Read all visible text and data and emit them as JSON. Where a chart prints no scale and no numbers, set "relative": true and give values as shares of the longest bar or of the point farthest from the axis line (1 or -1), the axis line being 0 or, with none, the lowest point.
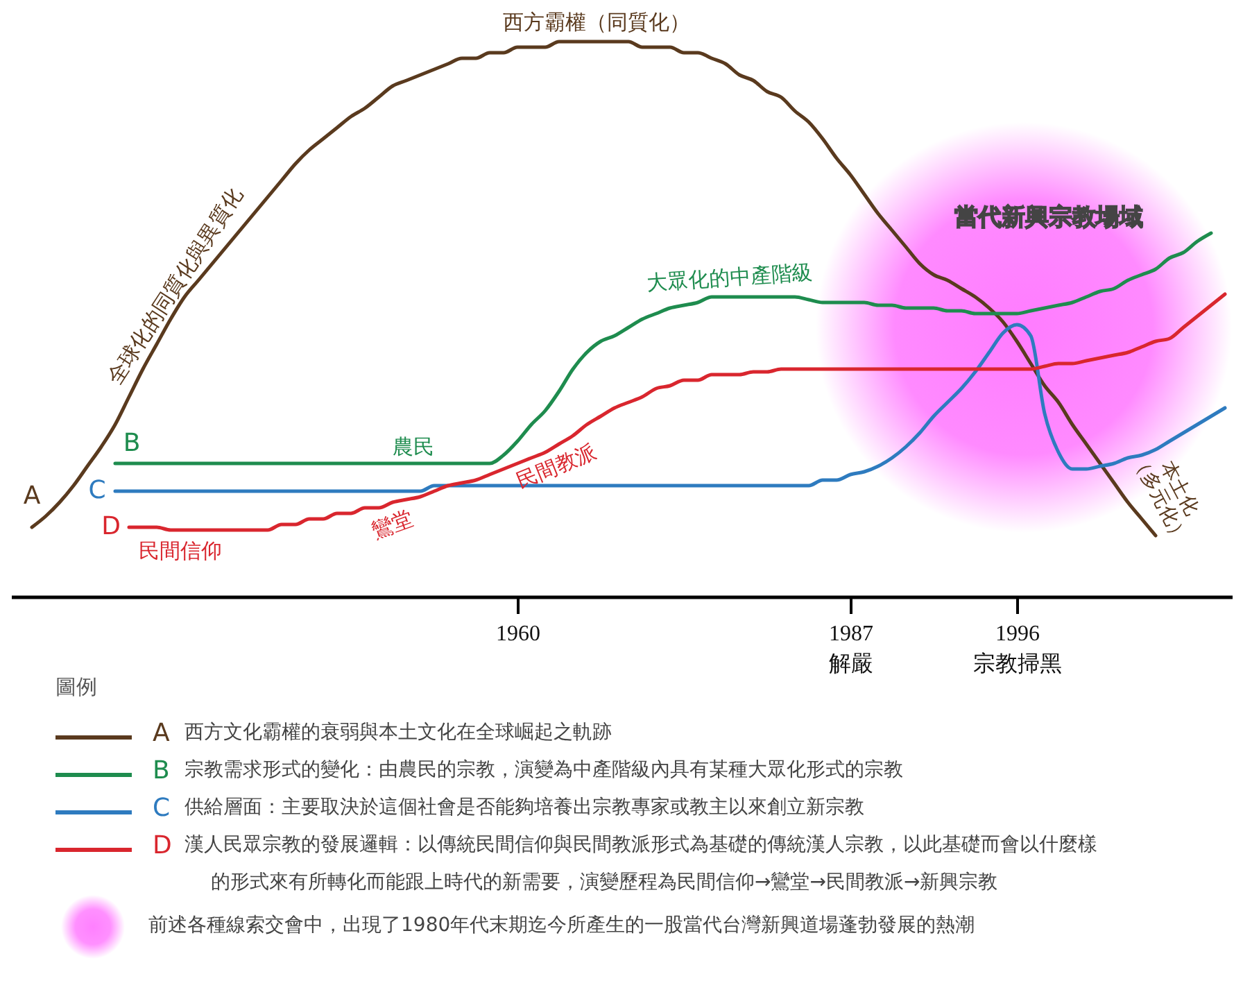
{
  "chart_data": {
    "type": "line",
    "relative": true,
    "legend": "bottom",
    "legend_title": "圖例",
    "categories": [
      null,
      null,
      null,
      null,
      null,
      null,
      null,
      null,
      null,
      null,
      null,
      null,
      null,
      null,
      null,
      null,
      null,
      null,
      null,
      null,
      null,
      null,
      null,
      null,
      null,
      null,
      null,
      null,
      null,
      null,
      null,
      null,
      null,
      null,
      null,
      null,
      "1960",
      null,
      null,
      null,
      null,
      null,
      null,
      null,
      null,
      null,
      null,
      null,
      null,
      null,
      null,
      null,
      null,
      null,
      null,
      null,
      null,
      null,
      null,
      null,
      "1987\n解嚴",
      null,
      null,
      null,
      null,
      null,
      null,
      null,
      null,
      null,
      null,
      null,
      "1996\n宗教掃黑",
      null,
      null,
      null,
      null,
      null,
      null,
      null,
      null,
      null,
      null,
      null,
      null,
      null,
      null,
      null
    ],
    "series": [
      {
        "name": "A",
        "color": "#5a3a1e",
        "values": [
          null,
          0.125,
          0.145,
          0.17,
          0.2,
          0.235,
          0.27,
          0.31,
          0.36,
          0.41,
          0.455,
          0.5,
          0.54,
          0.57,
          0.6,
          0.63,
          0.66,
          0.69,
          0.72,
          0.75,
          0.78,
          0.805,
          0.825,
          0.845,
          0.865,
          0.88,
          0.9,
          0.92,
          0.93,
          0.94,
          0.95,
          0.96,
          0.97,
          0.97,
          0.98,
          0.98,
          0.99,
          0.99,
          0.99,
          1,
          1,
          1,
          1,
          1,
          1,
          0.99,
          0.99,
          0.99,
          0.98,
          0.98,
          0.97,
          0.96,
          0.94,
          0.93,
          0.91,
          0.9,
          0.875,
          0.855,
          0.825,
          0.79,
          0.76,
          0.725,
          0.69,
          0.66,
          0.63,
          0.6,
          0.58,
          0.57,
          0.555,
          0.54,
          0.52,
          0.495,
          0.46,
          0.42,
          0.38,
          0.35,
          0.31,
          0.275,
          0.24,
          0.205,
          0.17,
          0.14,
          0.11,
          null,
          null,
          null,
          null,
          null
        ]
      },
      {
        "name": "B",
        "color": "#1e8c4e",
        "values": [
          null,
          null,
          null,
          null,
          null,
          null,
          null,
          0.24,
          0.24,
          0.24,
          0.24,
          0.24,
          0.24,
          0.24,
          0.24,
          0.24,
          0.24,
          0.24,
          0.24,
          0.24,
          0.24,
          0.24,
          0.24,
          0.24,
          0.24,
          0.24,
          0.24,
          0.24,
          0.24,
          0.24,
          0.24,
          0.24,
          0.24,
          0.24,
          0.24,
          0.255,
          0.28,
          0.31,
          0.335,
          0.37,
          0.41,
          0.44,
          0.46,
          0.47,
          0.485,
          0.5,
          0.51,
          0.52,
          0.525,
          0.53,
          0.54,
          0.54,
          0.54,
          0.54,
          0.54,
          0.54,
          0.54,
          0.535,
          0.53,
          0.53,
          0.53,
          0.53,
          0.525,
          0.525,
          0.52,
          0.52,
          0.52,
          0.515,
          0.515,
          0.51,
          0.51,
          0.51,
          0.51,
          0.515,
          0.52,
          0.525,
          0.53,
          0.54,
          0.55,
          0.555,
          0.57,
          0.58,
          0.59,
          0.61,
          0.62,
          0.64,
          0.655,
          null
        ]
      },
      {
        "name": "C",
        "color": "#2e7bbf",
        "values": [
          null,
          null,
          null,
          null,
          null,
          null,
          null,
          0.19,
          0.19,
          0.19,
          0.19,
          0.19,
          0.19,
          0.19,
          0.19,
          0.19,
          0.19,
          0.19,
          0.19,
          0.19,
          0.19,
          0.19,
          0.19,
          0.19,
          0.19,
          0.19,
          0.19,
          0.19,
          0.19,
          0.19,
          0.2,
          0.2,
          0.2,
          0.2,
          0.2,
          0.2,
          0.2,
          0.2,
          0.2,
          0.2,
          0.2,
          0.2,
          0.2,
          0.2,
          0.2,
          0.2,
          0.2,
          0.2,
          0.2,
          0.2,
          0.2,
          0.2,
          0.2,
          0.2,
          0.2,
          0.2,
          0.2,
          0.2,
          0.21,
          0.21,
          0.22,
          0.225,
          0.235,
          0.25,
          0.27,
          0.295,
          0.325,
          0.35,
          0.375,
          0.405,
          0.44,
          0.475,
          0.49,
          0.47,
          0.33,
          0.26,
          0.23,
          0.23,
          0.235,
          0.24,
          0.25,
          0.255,
          0.265,
          0.28,
          0.295,
          0.31,
          0.325,
          0.34
        ]
      },
      {
        "name": "D",
        "color": "#d9262e",
        "values": [
          null,
          null,
          null,
          null,
          null,
          null,
          null,
          null,
          0.125,
          0.125,
          0.125,
          0.12,
          0.12,
          0.12,
          0.12,
          0.12,
          0.12,
          0.12,
          0.12,
          0.13,
          0.13,
          0.14,
          0.14,
          0.15,
          0.15,
          0.16,
          0.16,
          0.17,
          0.175,
          0.18,
          0.19,
          0.2,
          0.205,
          0.21,
          0.22,
          0.23,
          0.24,
          0.25,
          0.26,
          0.275,
          0.29,
          0.31,
          0.325,
          0.34,
          0.35,
          0.36,
          0.375,
          0.38,
          0.39,
          0.39,
          0.4,
          0.4,
          0.4,
          0.405,
          0.405,
          0.41,
          0.41,
          0.41,
          0.41,
          0.41,
          0.41,
          0.41,
          0.41,
          0.41,
          0.41,
          0.41,
          0.41,
          0.41,
          0.41,
          0.41,
          0.41,
          0.41,
          0.41,
          0.41,
          0.415,
          0.42,
          0.42,
          0.425,
          0.43,
          0.435,
          0.44,
          0.45,
          0.46,
          0.465,
          0.485,
          0.505,
          0.525,
          0.545
        ]
      }
    ],
    "annotations": [
      "西方霸權（同質化）",
      "全球化的同質化與異質化",
      "農民",
      "大眾化的中產階級",
      "民間教派",
      "鸞堂",
      "民間信仰",
      "當代新興宗教場域",
      "本土化\n（多元化）",
      "西方文化霸權的衰弱與本土文化在全球崛起之軌跡",
      "宗教需求形式的變化：由農民的宗教，演變為中產階級內具有某種大眾化形式的宗教",
      "供給層面：主要取決於這個社會是否能夠培養出宗教專家或教主以來創立新宗教",
      "漢人民眾宗教的發展邏輯：以傳統民間信仰與民間教派形式為基礎的傳統漢人宗教，以此基礎而會以什麼樣的形式來有所轉化而能跟上時代的新需要，演變歷程為民間信仰→鸞堂→民間教派→新興宗教",
      "前述各種線索交會中，出現了1980年代末期迄今所產生的一股當代台灣新興道場蓬勃發展的熱潮"
    ]
  }
}
